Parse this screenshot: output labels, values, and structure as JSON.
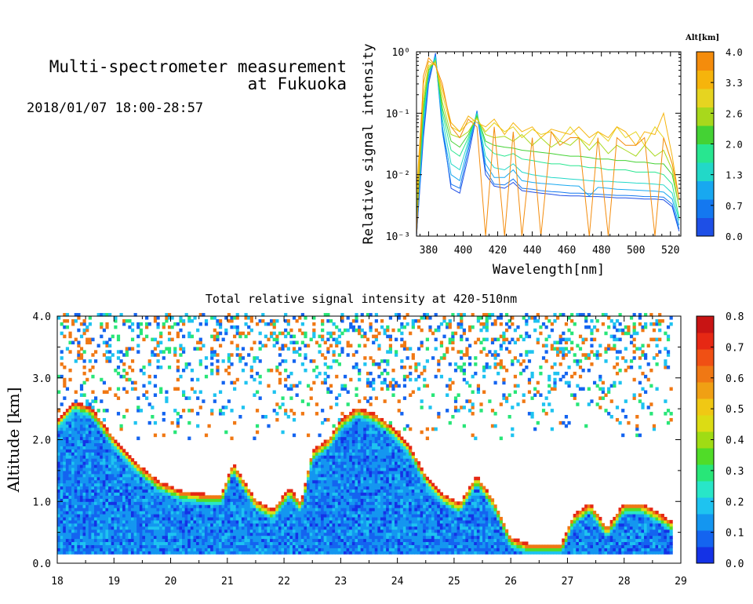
{
  "header": {
    "title_line1": "Multi-spectrometer measurement",
    "title_line2": "at Fukuoka",
    "datetime": "2018/01/07 18:00-28:57"
  },
  "chart_data": [
    {
      "type": "line",
      "xlabel": "Wavelength[nm]",
      "ylabel": "Relative signal intensity",
      "xlim": [
        373,
        526
      ],
      "ylim": [
        0.001,
        1
      ],
      "yscale": "log",
      "x_ticks": [
        380,
        400,
        420,
        440,
        460,
        480,
        500,
        520
      ],
      "y_ticks": [
        {
          "value": 0.001,
          "label": "10⁻³"
        },
        {
          "value": 0.01,
          "label": "10⁻²"
        },
        {
          "value": 0.1,
          "label": "10⁻¹"
        },
        {
          "value": 1,
          "label": "10⁰"
        }
      ],
      "grid": false,
      "colorbar": {
        "title": "Alt[km]",
        "ticks": [
          "0.0",
          "0.7",
          "1.3",
          "2.0",
          "2.6",
          "3.3",
          "4.0"
        ],
        "colors": [
          "#1e4fe6",
          "#1478f0",
          "#18a8f0",
          "#22d8c8",
          "#28e690",
          "#44d234",
          "#a8d81c",
          "#e6d420",
          "#f6b40c",
          "#f48c0c"
        ]
      },
      "x": [
        373,
        377,
        380,
        384,
        388,
        393,
        398,
        403,
        408,
        413,
        418,
        424,
        429,
        434,
        440,
        445,
        451,
        456,
        462,
        467,
        473,
        478,
        484,
        489,
        494,
        500,
        505,
        511,
        516,
        521,
        525
      ],
      "series": [
        {
          "color": "#1e4fe6",
          "values": [
            0.001,
            0.04,
            0.3,
            0.95,
            0.06,
            0.006,
            0.005,
            0.02,
            0.1,
            0.01,
            0.0065,
            0.006,
            0.0075,
            0.0055,
            0.0052,
            0.005,
            0.0048,
            0.0046,
            0.0045,
            0.0045,
            0.0044,
            0.0044,
            0.0043,
            0.0042,
            0.0042,
            0.0041,
            0.004,
            0.004,
            0.0039,
            0.003,
            0.0012
          ]
        },
        {
          "color": "#1478f0",
          "values": [
            0.001,
            0.05,
            0.35,
            0.9,
            0.05,
            0.007,
            0.006,
            0.025,
            0.11,
            0.012,
            0.007,
            0.0068,
            0.0085,
            0.006,
            0.0058,
            0.0055,
            0.0053,
            0.0052,
            0.005,
            0.005,
            0.0049,
            0.0048,
            0.0047,
            0.0046,
            0.0046,
            0.0045,
            0.0044,
            0.0044,
            0.0043,
            0.0033,
            0.0013
          ]
        },
        {
          "color": "#18a8f0",
          "values": [
            0.0012,
            0.06,
            0.4,
            0.85,
            0.06,
            0.01,
            0.008,
            0.03,
            0.1,
            0.015,
            0.009,
            0.009,
            0.012,
            0.008,
            0.0075,
            0.0072,
            0.007,
            0.0068,
            0.0066,
            0.0065,
            0.0045,
            0.0062,
            0.006,
            0.0058,
            0.0057,
            0.0056,
            0.0055,
            0.0054,
            0.0052,
            0.004,
            0.0015
          ]
        },
        {
          "color": "#22d8c8",
          "values": [
            0.0015,
            0.08,
            0.45,
            0.8,
            0.08,
            0.015,
            0.012,
            0.035,
            0.1,
            0.02,
            0.013,
            0.012,
            0.015,
            0.011,
            0.01,
            0.0095,
            0.009,
            0.0088,
            0.0085,
            0.0083,
            0.008,
            0.0078,
            0.0078,
            0.0076,
            0.0075,
            0.0073,
            0.0072,
            0.007,
            0.0068,
            0.005,
            0.0018
          ]
        },
        {
          "color": "#28e690",
          "values": [
            0.002,
            0.1,
            0.5,
            0.75,
            0.1,
            0.025,
            0.02,
            0.04,
            0.095,
            0.03,
            0.022,
            0.02,
            0.022,
            0.018,
            0.017,
            0.016,
            0.015,
            0.015,
            0.014,
            0.014,
            0.013,
            0.013,
            0.012,
            0.012,
            0.012,
            0.011,
            0.011,
            0.011,
            0.01,
            0.007,
            0.002
          ]
        },
        {
          "color": "#44d234",
          "values": [
            0.002,
            0.12,
            0.5,
            0.7,
            0.12,
            0.035,
            0.028,
            0.045,
            0.09,
            0.035,
            0.03,
            0.028,
            0.027,
            0.025,
            0.024,
            0.023,
            0.022,
            0.021,
            0.02,
            0.02,
            0.019,
            0.018,
            0.018,
            0.017,
            0.017,
            0.016,
            0.016,
            0.015,
            0.015,
            0.01,
            0.003
          ]
        },
        {
          "color": "#a8d81c",
          "values": [
            0.003,
            0.15,
            0.55,
            0.7,
            0.15,
            0.045,
            0.04,
            0.05,
            0.085,
            0.045,
            0.04,
            0.042,
            0.035,
            0.045,
            0.03,
            0.04,
            0.028,
            0.035,
            0.03,
            0.04,
            0.025,
            0.035,
            0.022,
            0.03,
            0.025,
            0.02,
            0.03,
            0.02,
            0.025,
            0.012,
            0.003
          ]
        },
        {
          "color": "#e6d420",
          "values": [
            0.004,
            0.2,
            0.6,
            0.65,
            0.2,
            0.06,
            0.05,
            0.07,
            0.08,
            0.05,
            0.07,
            0.05,
            0.06,
            0.04,
            0.055,
            0.045,
            0.05,
            0.035,
            0.06,
            0.04,
            0.03,
            0.05,
            0.035,
            0.06,
            0.04,
            0.05,
            0.03,
            0.06,
            0.04,
            0.015,
            0.004
          ]
        },
        {
          "color": "#f6b40c",
          "values": [
            0.005,
            0.3,
            0.7,
            0.6,
            0.25,
            0.07,
            0.05,
            0.09,
            0.07,
            0.06,
            0.08,
            0.045,
            0.07,
            0.05,
            0.06,
            0.04,
            0.055,
            0.05,
            0.045,
            0.06,
            0.04,
            0.05,
            0.04,
            0.06,
            0.05,
            0.03,
            0.05,
            0.045,
            0.1,
            0.02,
            0.004
          ]
        },
        {
          "color": "#f48c0c",
          "values": [
            0.001,
            0.4,
            0.8,
            0.6,
            0.3,
            0.06,
            0.04,
            0.08,
            0.06,
            0.001,
            0.06,
            0.001,
            0.05,
            0.001,
            0.04,
            0.001,
            0.05,
            0.03,
            0.04,
            0.04,
            0.001,
            0.04,
            0.001,
            0.04,
            0.03,
            0.03,
            0.04,
            0.001,
            0.04,
            0.015,
            0.004
          ]
        }
      ]
    },
    {
      "type": "heatmap",
      "title": "Total relative signal intensity at 420-510nm",
      "xlabel": "",
      "ylabel": "Altitude [km]",
      "xlim": [
        18,
        29
      ],
      "ylim": [
        0.0,
        4.0
      ],
      "x_ticks": [
        "18",
        "19",
        "20",
        "21",
        "22",
        "23",
        "24",
        "25",
        "26",
        "27",
        "28",
        "29"
      ],
      "y_ticks": [
        "0.0",
        "1.0",
        "2.0",
        "3.0",
        "4.0"
      ],
      "colorbar": {
        "ticks": [
          "0.0",
          "0.1",
          "0.2",
          "0.3",
          "0.4",
          "0.5",
          "0.6",
          "0.7",
          "0.8"
        ],
        "colors": [
          "#1432e6",
          "#1464f0",
          "#1496f0",
          "#1ec3f0",
          "#28e6c8",
          "#28e678",
          "#50dc28",
          "#a0dc14",
          "#dcdc14",
          "#f0c814",
          "#f0a014",
          "#f07814",
          "#f05014",
          "#e62814",
          "#c81414"
        ]
      },
      "data_end_hour": 28.85,
      "data_bottom_km": 0.15,
      "boundary": {
        "hours": [
          18.0,
          18.3,
          18.6,
          19.0,
          19.4,
          19.8,
          20.2,
          20.6,
          20.9,
          21.1,
          21.3,
          21.5,
          21.8,
          22.1,
          22.3,
          22.5,
          22.8,
          23.0,
          23.3,
          23.6,
          23.9,
          24.2,
          24.5,
          24.8,
          25.1,
          25.4,
          25.7,
          26.0,
          26.3,
          26.6,
          26.9,
          27.1,
          27.4,
          27.7,
          28.0,
          28.3,
          28.6,
          28.85
        ],
        "top_km": [
          2.3,
          2.6,
          2.5,
          2.0,
          1.6,
          1.3,
          1.15,
          1.1,
          1.1,
          1.6,
          1.3,
          1.0,
          0.85,
          1.2,
          0.95,
          1.8,
          2.0,
          2.3,
          2.5,
          2.4,
          2.2,
          1.9,
          1.4,
          1.1,
          0.95,
          1.4,
          1.0,
          0.4,
          0.3,
          0.3,
          0.3,
          0.75,
          0.95,
          0.55,
          0.95,
          0.95,
          0.8,
          0.65
        ]
      }
    }
  ]
}
